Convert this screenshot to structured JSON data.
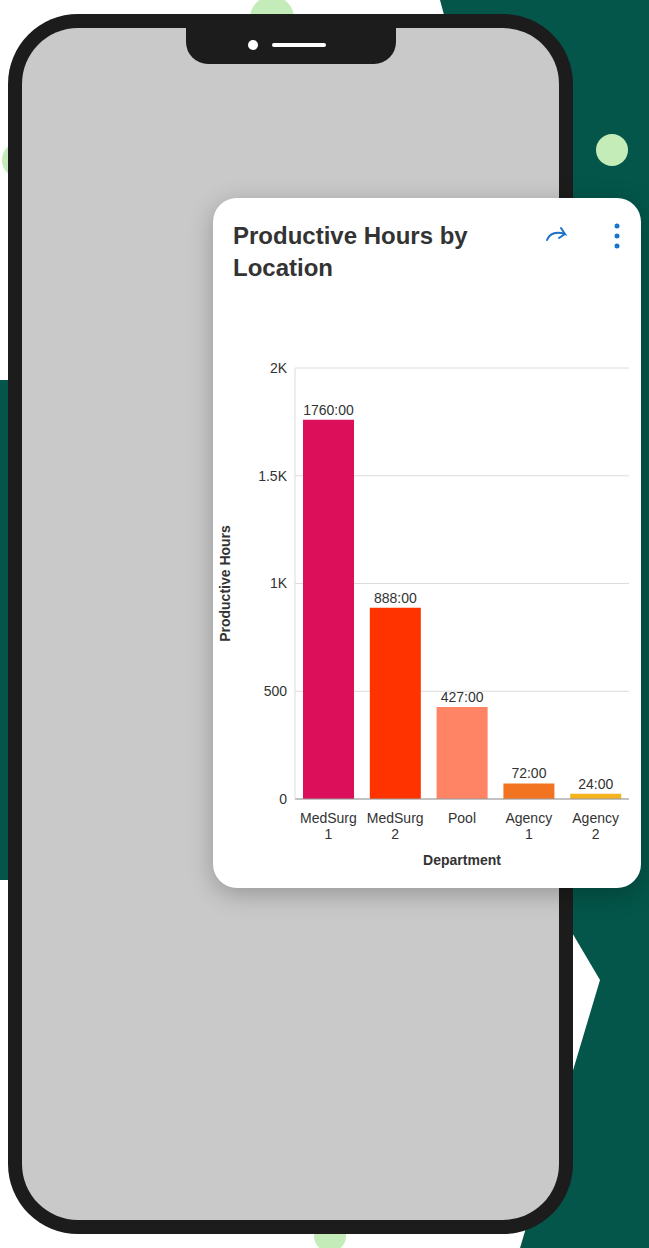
{
  "chart_data": {
    "type": "bar",
    "title": "Productive Hours by Location",
    "categories": [
      "MedSurg 1",
      "MedSurg 2",
      "Pool",
      "Agency 1",
      "Agency 2"
    ],
    "values": [
      1760,
      888,
      427,
      72,
      24
    ],
    "value_labels": [
      "1760:00",
      "888:00",
      "427:00",
      "72:00",
      "24:00"
    ],
    "colors": [
      "#dc0f5a",
      "#ff3300",
      "#ff8466",
      "#f27420",
      "#f5b41e"
    ],
    "x_label": "Department",
    "y_label": "Productive Hours",
    "ylim": [
      0,
      2000
    ],
    "yticks": [
      0,
      500,
      {
        "value": 1000,
        "label": "1K"
      },
      {
        "value": 1500,
        "label": "1.5K"
      },
      {
        "value": 2000,
        "label": "2K"
      }
    ],
    "grid": true,
    "data_labels": true
  }
}
